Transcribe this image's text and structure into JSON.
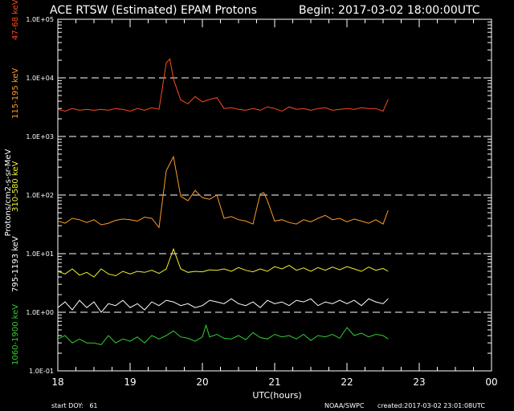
{
  "chart_data": {
    "type": "line",
    "title": "ACE RTSW (Estimated) EPAM Protons",
    "begin_label": "Begin: 2017-03-02 18:00:00UTC",
    "xlabel": "UTC(hours)",
    "ylabel": "Protons/cm2-s-sr-MeV",
    "x_ticks": [
      "18",
      "19",
      "20",
      "21",
      "22",
      "23",
      "00"
    ],
    "x_range": [
      18,
      24
    ],
    "y_scale": "log",
    "y_ticks": [
      "1.0E+05",
      "1.0E+04",
      "1.0E+03",
      "1.0E+02",
      "1.0E+01",
      "1.0E+00",
      "1.0E-01"
    ],
    "y_range": [
      0.1,
      100000
    ],
    "dashed_grid_levels": [
      10000,
      1000,
      100,
      10,
      1
    ],
    "footer_left": "start DOY:   61",
    "footer_mid": "NOAA/SWPC",
    "footer_right": "created:2017-03-02 23:01:08UTC",
    "series": [
      {
        "name": "47-68 keV",
        "color": "#ff4a1a",
        "x": [
          18.0,
          18.1,
          18.2,
          18.3,
          18.4,
          18.5,
          18.6,
          18.7,
          18.8,
          18.9,
          19.0,
          19.1,
          19.2,
          19.3,
          19.4,
          19.5,
          19.55,
          19.6,
          19.7,
          19.8,
          19.9,
          20.0,
          20.1,
          20.2,
          20.3,
          20.4,
          20.5,
          20.6,
          20.7,
          20.8,
          20.9,
          21.0,
          21.1,
          21.2,
          21.3,
          21.4,
          21.5,
          21.6,
          21.7,
          21.8,
          21.9,
          22.0,
          22.1,
          22.2,
          22.3,
          22.4,
          22.5,
          22.57
        ],
        "values": [
          2900,
          2700,
          3000,
          2800,
          2900,
          2800,
          2900,
          2800,
          3000,
          2900,
          2700,
          3000,
          2800,
          3100,
          2900,
          18000,
          21000,
          9500,
          4200,
          3600,
          4800,
          3900,
          4300,
          4600,
          3000,
          3100,
          2900,
          2800,
          3000,
          2800,
          3200,
          3000,
          2700,
          3200,
          2900,
          3000,
          2800,
          3000,
          3100,
          2800,
          2900,
          3000,
          2900,
          3100,
          3000,
          3000,
          2700,
          4300
        ]
      },
      {
        "name": "115-195 keV",
        "color": "#ff9a2a",
        "x": [
          18.0,
          18.1,
          18.2,
          18.3,
          18.4,
          18.5,
          18.6,
          18.7,
          18.8,
          18.9,
          19.0,
          19.1,
          19.2,
          19.3,
          19.4,
          19.5,
          19.6,
          19.7,
          19.8,
          19.9,
          20.0,
          20.1,
          20.2,
          20.3,
          20.4,
          20.5,
          20.6,
          20.7,
          20.8,
          20.85,
          20.9,
          21.0,
          21.1,
          21.2,
          21.3,
          21.4,
          21.5,
          21.6,
          21.7,
          21.8,
          21.9,
          22.0,
          22.1,
          22.2,
          22.3,
          22.4,
          22.5,
          22.57
        ],
        "values": [
          36,
          33,
          40,
          38,
          34,
          38,
          31,
          33,
          37,
          39,
          38,
          36,
          42,
          40,
          28,
          260,
          450,
          95,
          80,
          120,
          90,
          85,
          100,
          40,
          43,
          38,
          36,
          32,
          105,
          110,
          80,
          36,
          38,
          34,
          32,
          38,
          35,
          40,
          45,
          38,
          40,
          35,
          39,
          36,
          33,
          38,
          32,
          55
        ]
      },
      {
        "name": "310-580 keV",
        "color": "#f0f030",
        "x": [
          18.0,
          18.1,
          18.2,
          18.3,
          18.4,
          18.5,
          18.6,
          18.7,
          18.8,
          18.9,
          19.0,
          19.1,
          19.2,
          19.3,
          19.4,
          19.5,
          19.6,
          19.7,
          19.8,
          19.9,
          20.0,
          20.1,
          20.2,
          20.3,
          20.4,
          20.5,
          20.6,
          20.7,
          20.8,
          20.9,
          21.0,
          21.1,
          21.2,
          21.3,
          21.4,
          21.5,
          21.6,
          21.7,
          21.8,
          21.9,
          22.0,
          22.1,
          22.2,
          22.3,
          22.4,
          22.5,
          22.57
        ],
        "values": [
          5.0,
          4.5,
          5.5,
          4.3,
          4.8,
          4.0,
          5.5,
          4.5,
          4.2,
          5.0,
          4.5,
          5.0,
          4.8,
          5.2,
          4.6,
          5.5,
          12.0,
          5.5,
          4.8,
          5.0,
          4.9,
          5.3,
          5.2,
          5.5,
          5.0,
          5.8,
          5.2,
          4.9,
          5.5,
          5.0,
          6.0,
          5.5,
          6.3,
          5.2,
          5.7,
          5.0,
          5.8,
          5.2,
          5.9,
          5.3,
          6.0,
          5.5,
          5.0,
          5.9,
          5.2,
          5.6,
          5.0
        ]
      },
      {
        "name": "795-1193 keV",
        "color": "#ffffff",
        "x": [
          18.0,
          18.1,
          18.2,
          18.3,
          18.4,
          18.5,
          18.6,
          18.7,
          18.8,
          18.9,
          19.0,
          19.1,
          19.2,
          19.3,
          19.4,
          19.5,
          19.6,
          19.7,
          19.8,
          19.9,
          20.0,
          20.1,
          20.2,
          20.3,
          20.4,
          20.5,
          20.6,
          20.7,
          20.8,
          20.9,
          21.0,
          21.1,
          21.2,
          21.3,
          21.4,
          21.5,
          21.6,
          21.7,
          21.8,
          21.9,
          22.0,
          22.1,
          22.2,
          22.3,
          22.4,
          22.5,
          22.57
        ],
        "values": [
          1.2,
          1.5,
          1.1,
          1.6,
          1.2,
          1.5,
          1.0,
          1.4,
          1.3,
          1.6,
          1.2,
          1.4,
          1.1,
          1.5,
          1.3,
          1.6,
          1.5,
          1.3,
          1.4,
          1.2,
          1.3,
          1.6,
          1.5,
          1.4,
          1.7,
          1.4,
          1.3,
          1.5,
          1.2,
          1.6,
          1.4,
          1.5,
          1.3,
          1.6,
          1.5,
          1.7,
          1.3,
          1.5,
          1.4,
          1.6,
          1.4,
          1.6,
          1.3,
          1.7,
          1.5,
          1.4,
          1.7
        ]
      },
      {
        "name": "1060-1900 keV",
        "color": "#30d030",
        "x": [
          18.0,
          18.1,
          18.2,
          18.3,
          18.4,
          18.5,
          18.6,
          18.7,
          18.8,
          18.9,
          19.0,
          19.1,
          19.2,
          19.3,
          19.4,
          19.5,
          19.6,
          19.7,
          19.8,
          19.9,
          20.0,
          20.05,
          20.1,
          20.2,
          20.3,
          20.4,
          20.5,
          20.6,
          20.7,
          20.8,
          20.9,
          21.0,
          21.1,
          21.2,
          21.3,
          21.4,
          21.5,
          21.6,
          21.7,
          21.8,
          21.9,
          22.0,
          22.1,
          22.2,
          22.3,
          22.4,
          22.5,
          22.57
        ],
        "values": [
          0.35,
          0.4,
          0.3,
          0.35,
          0.3,
          0.3,
          0.28,
          0.4,
          0.3,
          0.35,
          0.32,
          0.38,
          0.3,
          0.4,
          0.35,
          0.4,
          0.48,
          0.38,
          0.36,
          0.32,
          0.38,
          0.6,
          0.38,
          0.42,
          0.36,
          0.35,
          0.4,
          0.34,
          0.45,
          0.37,
          0.35,
          0.42,
          0.38,
          0.4,
          0.35,
          0.42,
          0.33,
          0.4,
          0.38,
          0.42,
          0.36,
          0.55,
          0.4,
          0.44,
          0.38,
          0.42,
          0.4,
          0.35
        ]
      }
    ]
  }
}
